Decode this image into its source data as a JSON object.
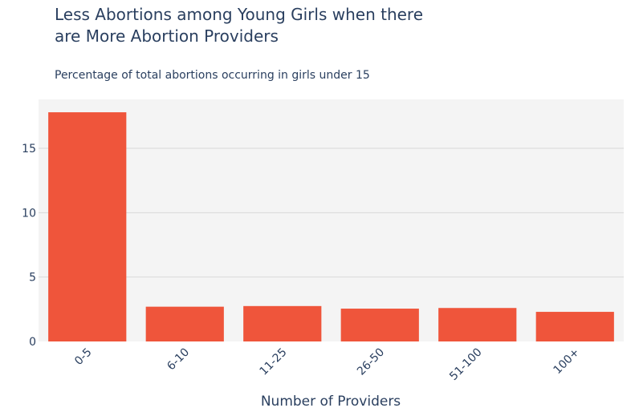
{
  "chart_data": {
    "type": "bar",
    "title_lines": [
      "Less Abortions among Young Girls when there",
      "are More Abortion Providers"
    ],
    "subtitle": "Percentage of total abortions occurring in girls under 15",
    "xlabel": "Number of Providers",
    "ylabel": "",
    "categories": [
      "0-5",
      "6-10",
      "11-25",
      "26-50",
      "51-100",
      "100+"
    ],
    "values": [
      17.8,
      2.7,
      2.75,
      2.55,
      2.6,
      2.3
    ],
    "ylim": [
      0,
      18.8
    ],
    "yticks": [
      0,
      5,
      10,
      15
    ],
    "grid": true,
    "legend": "none",
    "bar_color": "#ef553b",
    "plot_background": "#f4f4f4",
    "grid_color": "#d9d9d9",
    "text_color": "#2a3f5f"
  }
}
